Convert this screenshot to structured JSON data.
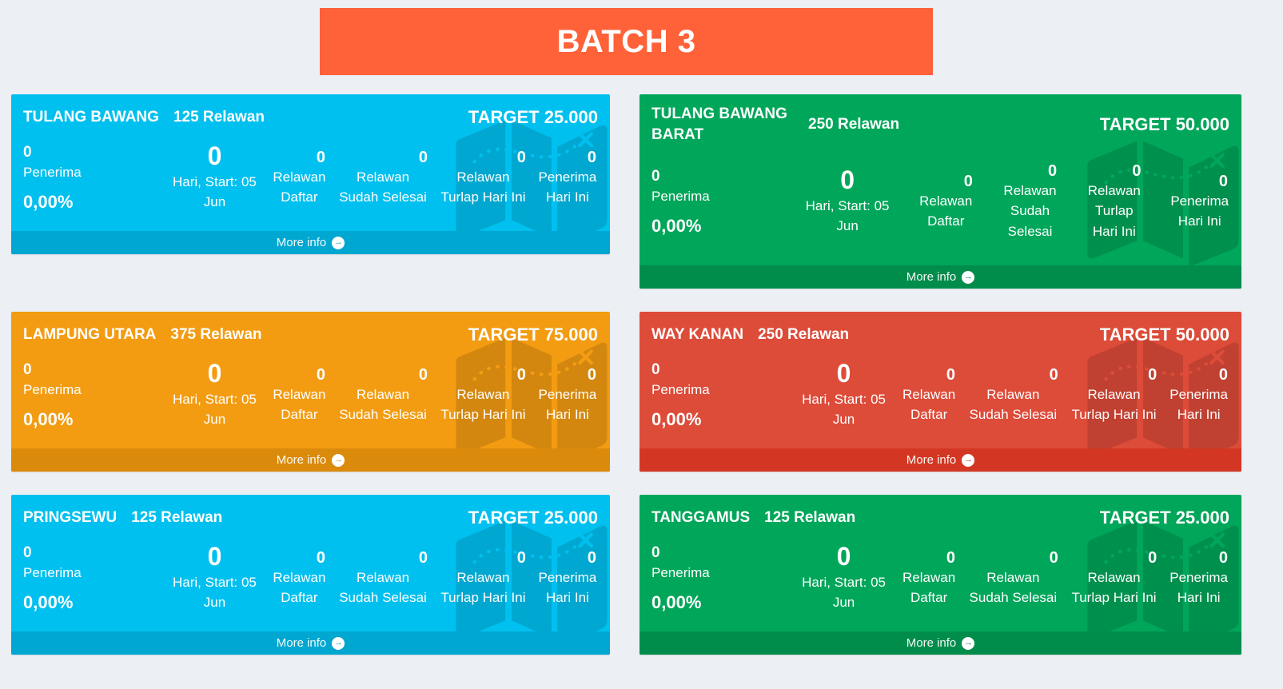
{
  "page_bg": "#eceff4",
  "header": {
    "title": "BATCH 3",
    "bg": "#ff6239"
  },
  "cards": [
    {
      "region": "TULANG BAWANG",
      "relawan": "125 Relawan",
      "target": "TARGET 25.000",
      "penerima": {
        "value": "0",
        "label": "Penerima",
        "percent": "0,00%"
      },
      "hari": {
        "value": "0",
        "label": "Hari, Start: 05 Jun"
      },
      "stats": [
        {
          "value": "0",
          "label": "Relawan Daftar"
        },
        {
          "value": "0",
          "label": "Relawan Sudah Selesai"
        },
        {
          "value": "0",
          "label": "Relawan Turlap Hari Ini"
        },
        {
          "value": "0",
          "label": "Penerima Hari Ini"
        }
      ],
      "more_info": "More info",
      "colors": {
        "body": "#00c0ef",
        "footer": "#00a7d0"
      },
      "variant": "normal"
    },
    {
      "region": "TULANG BAWANG BARAT",
      "relawan": "250 Relawan",
      "target": "TARGET 50.000",
      "penerima": {
        "value": "0",
        "label": "Penerima",
        "percent": "0,00%"
      },
      "hari": {
        "value": "0",
        "label": "Hari, Start: 05 Jun"
      },
      "stats": [
        {
          "value": "0",
          "label": "Relawan Daftar"
        },
        {
          "value": "0",
          "label": "Relawan Sudah Selesai"
        },
        {
          "value": "0",
          "label": "Relawan Turlap Hari Ini"
        },
        {
          "value": "0",
          "label": "Penerima Hari Ini"
        }
      ],
      "more_info": "More info",
      "colors": {
        "body": "#00a65a",
        "footer": "#008d4c"
      },
      "variant": "tall"
    },
    {
      "region": "LAMPUNG UTARA",
      "relawan": "375 Relawan",
      "target": "TARGET 75.000",
      "penerima": {
        "value": "0",
        "label": "Penerima",
        "percent": "0,00%"
      },
      "hari": {
        "value": "0",
        "label": "Hari, Start: 05 Jun"
      },
      "stats": [
        {
          "value": "0",
          "label": "Relawan Daftar"
        },
        {
          "value": "0",
          "label": "Relawan Sudah Selesai"
        },
        {
          "value": "0",
          "label": "Relawan Turlap Hari Ini"
        },
        {
          "value": "0",
          "label": "Penerima Hari Ini"
        }
      ],
      "more_info": "More info",
      "colors": {
        "body": "#f39c12",
        "footer": "#db8b0b"
      },
      "variant": "normal"
    },
    {
      "region": "WAY KANAN",
      "relawan": "250 Relawan",
      "target": "TARGET 50.000",
      "penerima": {
        "value": "0",
        "label": "Penerima",
        "percent": "0,00%"
      },
      "hari": {
        "value": "0",
        "label": "Hari, Start: 05 Jun"
      },
      "stats": [
        {
          "value": "0",
          "label": "Relawan Daftar"
        },
        {
          "value": "0",
          "label": "Relawan Sudah Selesai"
        },
        {
          "value": "0",
          "label": "Relawan Turlap Hari Ini"
        },
        {
          "value": "0",
          "label": "Penerima Hari Ini"
        }
      ],
      "more_info": "More info",
      "colors": {
        "body": "#dd4b39",
        "footer": "#d33724"
      },
      "variant": "normal"
    },
    {
      "region": "PRINGSEWU",
      "relawan": "125 Relawan",
      "target": "TARGET 25.000",
      "penerima": {
        "value": "0",
        "label": "Penerima",
        "percent": "0,00%"
      },
      "hari": {
        "value": "0",
        "label": "Hari, Start: 05 Jun"
      },
      "stats": [
        {
          "value": "0",
          "label": "Relawan Daftar"
        },
        {
          "value": "0",
          "label": "Relawan Sudah Selesai"
        },
        {
          "value": "0",
          "label": "Relawan Turlap Hari Ini"
        },
        {
          "value": "0",
          "label": "Penerima Hari Ini"
        }
      ],
      "more_info": "More info",
      "colors": {
        "body": "#00c0ef",
        "footer": "#00a7d0"
      },
      "variant": "normal"
    },
    {
      "region": "TANGGAMUS",
      "relawan": "125 Relawan",
      "target": "TARGET 25.000",
      "penerima": {
        "value": "0",
        "label": "Penerima",
        "percent": "0,00%"
      },
      "hari": {
        "value": "0",
        "label": "Hari, Start: 05 Jun"
      },
      "stats": [
        {
          "value": "0",
          "label": "Relawan Daftar"
        },
        {
          "value": "0",
          "label": "Relawan Sudah Selesai"
        },
        {
          "value": "0",
          "label": "Relawan Turlap Hari Ini"
        },
        {
          "value": "0",
          "label": "Penerima Hari Ini"
        }
      ],
      "more_info": "More info",
      "colors": {
        "body": "#00a65a",
        "footer": "#008d4c"
      },
      "variant": "normal"
    }
  ]
}
